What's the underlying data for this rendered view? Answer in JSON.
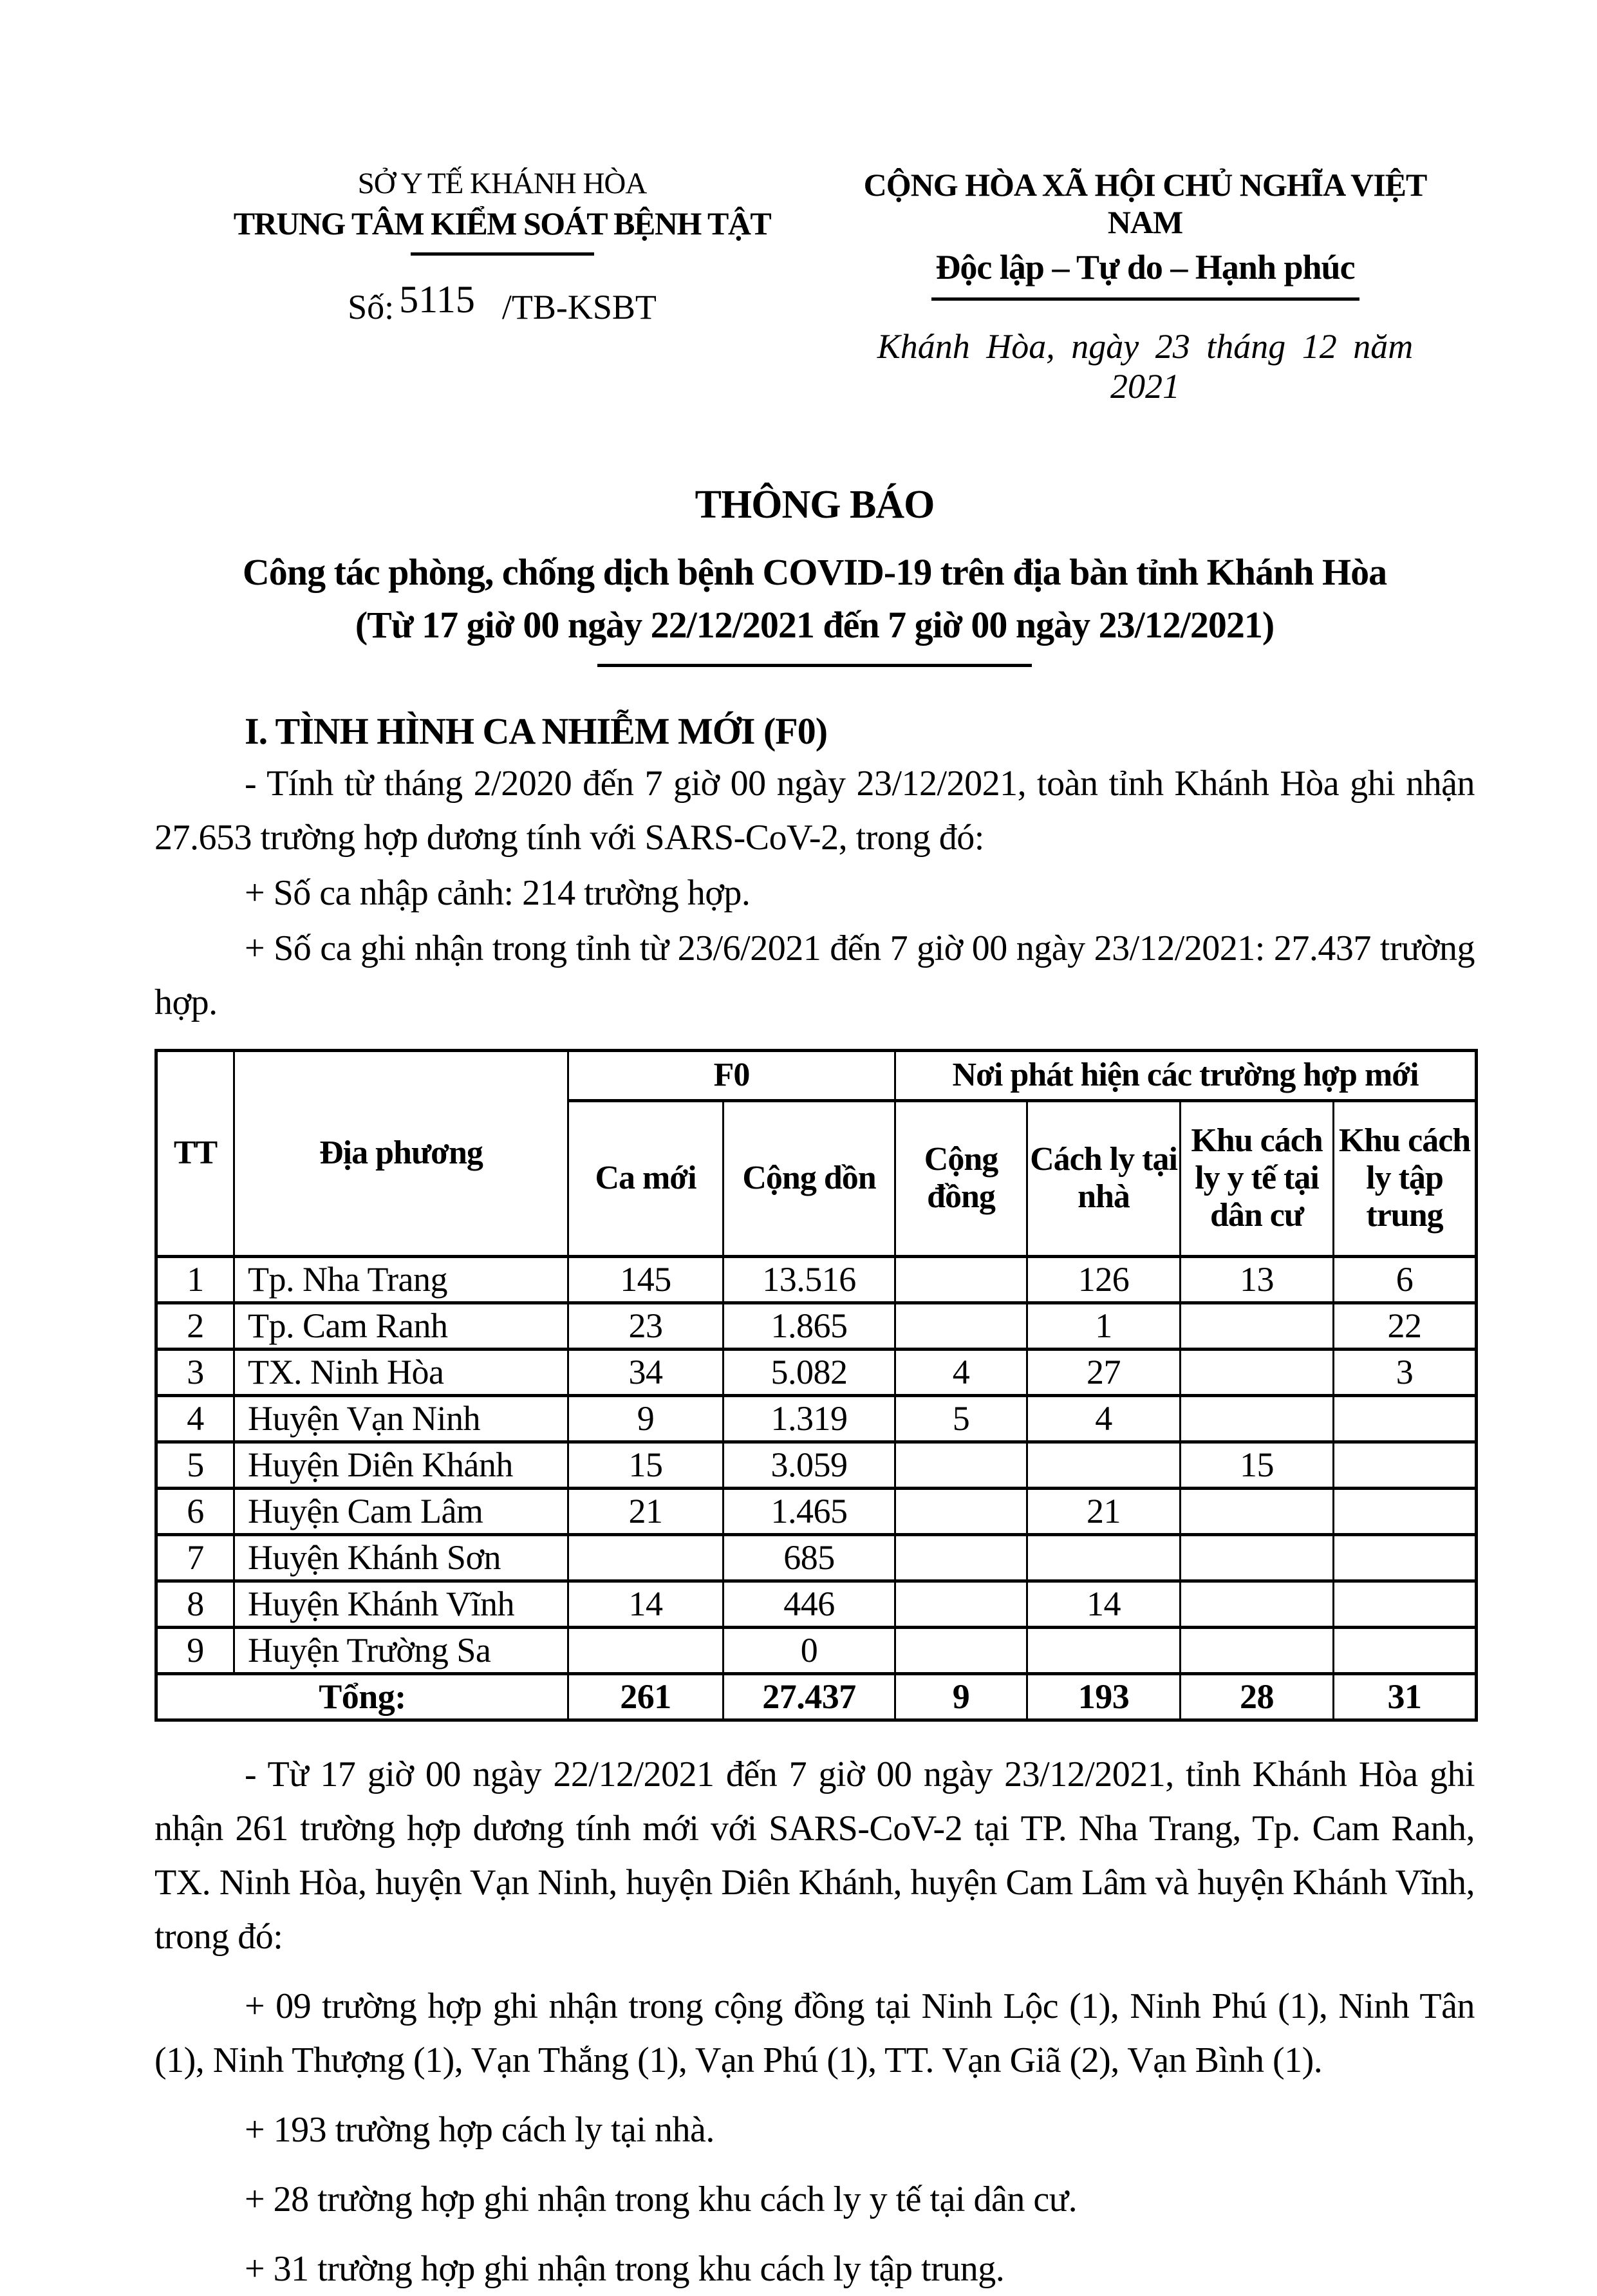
{
  "colors": {
    "text": "#000000",
    "background": "#ffffff"
  },
  "header": {
    "left": {
      "line1": "SỞ Y TẾ KHÁNH HÒA",
      "line2": "TRUNG TÂM KIỂM SOÁT BỆNH TẬT"
    },
    "right": {
      "line1": "CỘNG HÒA XÃ HỘI CHỦ NGHĨA VIỆT NAM",
      "line2": "Độc lập – Tự do – Hạnh phúc"
    },
    "doc_number": {
      "label": "Số:",
      "number": "5115",
      "suffix": "/TB-KSBT"
    },
    "place_date": "Khánh Hòa, ngày 23 tháng 12 năm 2021"
  },
  "title": {
    "line1": "THÔNG BÁO",
    "line2": "Công tác phòng, chống dịch bệnh COVID-19 trên địa bàn tỉnh Khánh Hòa",
    "line3": "(Từ 17 giờ 00 ngày 22/12/2021 đến 7 giờ 00 ngày 23/12/2021)"
  },
  "section1": {
    "heading": "I. TÌNH HÌNH CA NHIỄM MỚI (F0)",
    "para1": "- Tính từ tháng 2/2020 đến 7 giờ 00 ngày 23/12/2021, toàn tỉnh Khánh Hòa ghi nhận 27.653 trường hợp dương tính với SARS-CoV-2, trong đó:",
    "para2": "+ Số ca nhập cảnh: 214 trường hợp.",
    "para3": "+ Số ca ghi nhận trong tỉnh từ 23/6/2021 đến 7 giờ 00 ngày 23/12/2021: 27.437 trường hợp."
  },
  "table": {
    "header": {
      "tt": "TT",
      "locality": "Địa phương",
      "f0": "F0",
      "f0_new": "Ca mới",
      "f0_total": "Cộng dồn",
      "detect": "Nơi phát hiện các trường hợp mới",
      "community": "Cộng đồng",
      "home": "Cách ly tại nhà",
      "medical": "Khu cách ly y tế tại dân cư",
      "central": "Khu cách ly tập trung"
    },
    "rows": [
      {
        "tt": "1",
        "locality": "Tp. Nha Trang",
        "new": "145",
        "total": "13.516",
        "community": "",
        "home": "126",
        "medical": "13",
        "central": "6"
      },
      {
        "tt": "2",
        "locality": "Tp. Cam Ranh",
        "new": "23",
        "total": "1.865",
        "community": "",
        "home": "1",
        "medical": "",
        "central": "22"
      },
      {
        "tt": "3",
        "locality": "TX. Ninh Hòa",
        "new": "34",
        "total": "5.082",
        "community": "4",
        "home": "27",
        "medical": "",
        "central": "3"
      },
      {
        "tt": "4",
        "locality": "Huyện Vạn Ninh",
        "new": "9",
        "total": "1.319",
        "community": "5",
        "home": "4",
        "medical": "",
        "central": ""
      },
      {
        "tt": "5",
        "locality": "Huyện Diên Khánh",
        "new": "15",
        "total": "3.059",
        "community": "",
        "home": "",
        "medical": "15",
        "central": ""
      },
      {
        "tt": "6",
        "locality": "Huyện Cam Lâm",
        "new": "21",
        "total": "1.465",
        "community": "",
        "home": "21",
        "medical": "",
        "central": ""
      },
      {
        "tt": "7",
        "locality": "Huyện Khánh Sơn",
        "new": "",
        "total": "685",
        "community": "",
        "home": "",
        "medical": "",
        "central": ""
      },
      {
        "tt": "8",
        "locality": "Huyện Khánh Vĩnh",
        "new": "14",
        "total": "446",
        "community": "",
        "home": "14",
        "medical": "",
        "central": ""
      },
      {
        "tt": "9",
        "locality": "Huyện Trường Sa",
        "new": "",
        "total": "0",
        "community": "",
        "home": "",
        "medical": "",
        "central": ""
      }
    ],
    "total": {
      "label": "Tổng:",
      "new": "261",
      "total": "27.437",
      "community": "9",
      "home": "193",
      "medical": "28",
      "central": "31"
    }
  },
  "after_table": {
    "para1": "- Từ 17 giờ 00 ngày 22/12/2021 đến 7 giờ 00 ngày 23/12/2021, tỉnh Khánh Hòa ghi nhận 261 trường hợp dương tính mới với SARS-CoV-2 tại TP. Nha Trang, Tp. Cam Ranh, TX. Ninh Hòa, huyện Vạn Ninh, huyện Diên Khánh, huyện Cam Lâm và huyện Khánh Vĩnh, trong đó:",
    "para2": "+ 09 trường hợp ghi nhận trong cộng đồng tại Ninh Lộc (1), Ninh Phú (1), Ninh Tân (1), Ninh Thượng (1), Vạn Thắng (1), Vạn Phú (1), TT. Vạn Giã (2), Vạn Bình (1).",
    "para3": "+ 193 trường hợp cách ly tại nhà.",
    "para4": "+ 28 trường hợp ghi nhận trong khu cách ly y tế tại dân cư.",
    "para5": "+ 31 trường hợp ghi nhận trong khu cách ly tập trung."
  }
}
